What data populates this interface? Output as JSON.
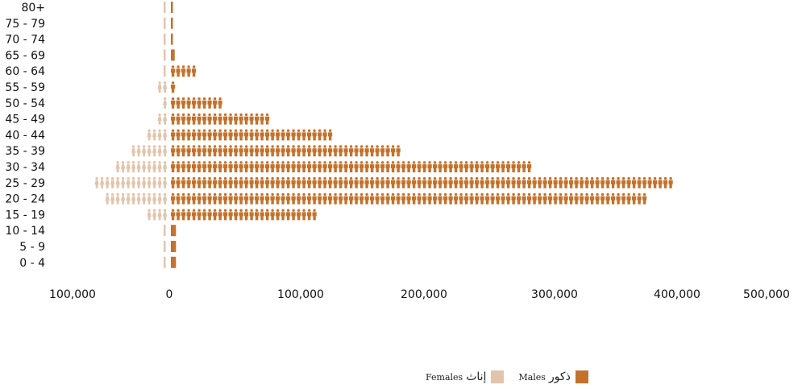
{
  "chart_data": {
    "type": "bar",
    "subtype": "population-pyramid-pictogram",
    "categories": [
      "80+",
      "75 - 79",
      "70 - 74",
      "65 - 69",
      "60 - 64",
      "55 - 59",
      "50 - 54",
      "45 - 49",
      "40 - 44",
      "35 - 39",
      "30 - 34",
      "25 - 29",
      "20 - 24",
      "15 - 19",
      "10 - 14",
      "5 - 9",
      "0 - 4"
    ],
    "series": [
      {
        "name": "Males",
        "name_ar": "ذكور",
        "color": "#c4712b",
        "values": [
          800,
          1000,
          1000,
          3000,
          21000,
          5000,
          43000,
          77000,
          128000,
          181000,
          286000,
          398000,
          377000,
          116000,
          4000,
          4000,
          4000
        ]
      },
      {
        "name": "Females",
        "name_ar": "إناث",
        "color": "#e2c4aa",
        "values": [
          1000,
          1000,
          1000,
          1000,
          3000,
          7000,
          6000,
          10000,
          18000,
          30000,
          42000,
          57000,
          50000,
          18000,
          3000,
          4000,
          3000
        ]
      }
    ],
    "x_ticks": [
      "100,000",
      "0",
      "100,000",
      "200,000",
      "300,000",
      "400,000",
      "500,000"
    ],
    "x_tick_values": [
      -100000,
      0,
      100000,
      200000,
      300000,
      400000,
      500000
    ],
    "grid": false,
    "legend_position": "bottom-right"
  },
  "legend": {
    "females_en": "Females",
    "females_ar": "إناث",
    "males_en": "Males",
    "males_ar": "ذكور"
  }
}
